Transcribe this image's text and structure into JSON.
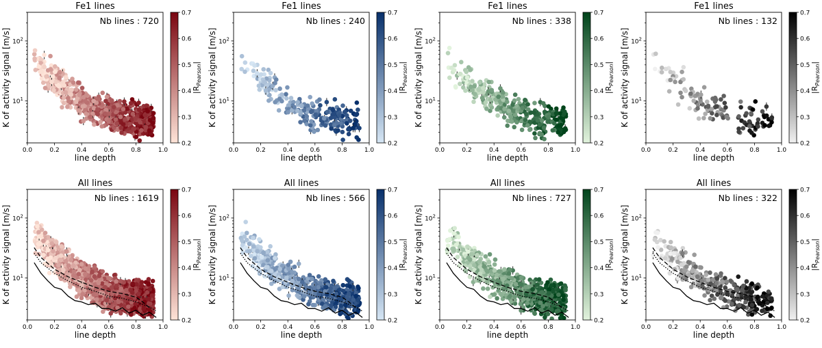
{
  "chart_data": [
    {
      "type": "scatter",
      "row": "top",
      "title": "Fe1 lines",
      "annotation": "Nb lines : 720",
      "xlabel": "line depth",
      "ylabel": "K of activity signal [m/s]",
      "xlim": [
        0,
        1
      ],
      "ylim": [
        2,
        300
      ],
      "yscale": "log",
      "xticks": [
        "0.0",
        "0.2",
        "0.4",
        "0.6",
        "0.8",
        "1.0"
      ],
      "yticks": [
        "10^1",
        "10^2"
      ],
      "colormap": "Reds",
      "colorbar": {
        "label": "|R_Pearson|",
        "range": [
          0.2,
          0.7
        ],
        "ticks": [
          "0.2",
          "0.3",
          "0.4",
          "0.5",
          "0.6",
          "0.7"
        ]
      },
      "point_count": 720,
      "seed": 11,
      "color_low": "#fee4d8",
      "color_high": "#7a0510",
      "reference_lines": false
    },
    {
      "type": "scatter",
      "row": "top",
      "title": "Fe1 lines",
      "annotation": "Nb lines : 240",
      "xlabel": "line depth",
      "ylabel": "K of activity signal [m/s]",
      "xlim": [
        0,
        1
      ],
      "ylim": [
        2,
        300
      ],
      "yscale": "log",
      "xticks": [
        "0.0",
        "0.2",
        "0.4",
        "0.6",
        "0.8",
        "1.0"
      ],
      "yticks": [
        "10^1",
        "10^2"
      ],
      "colormap": "Blues",
      "colorbar": {
        "label": "|R_Pearson|",
        "range": [
          0.2,
          0.7
        ],
        "ticks": [
          "0.2",
          "0.3",
          "0.4",
          "0.5",
          "0.6",
          "0.7"
        ]
      },
      "point_count": 240,
      "seed": 23,
      "color_low": "#d6e6f4",
      "color_high": "#08306b",
      "reference_lines": false
    },
    {
      "type": "scatter",
      "row": "top",
      "title": "Fe1 lines",
      "annotation": "Nb lines : 338",
      "xlabel": "line depth",
      "ylabel": "K of activity signal [m/s]",
      "xlim": [
        0,
        1
      ],
      "ylim": [
        2,
        300
      ],
      "yscale": "log",
      "xticks": [
        "0.0",
        "0.2",
        "0.4",
        "0.6",
        "0.8",
        "1.0"
      ],
      "yticks": [
        "10^1",
        "10^2"
      ],
      "colormap": "Greens",
      "colorbar": {
        "label": "|R_Pearson|",
        "range": [
          0.2,
          0.7
        ],
        "ticks": [
          "0.2",
          "0.3",
          "0.4",
          "0.5",
          "0.6",
          "0.7"
        ]
      },
      "point_count": 338,
      "seed": 37,
      "color_low": "#e2f3dd",
      "color_high": "#00441b",
      "reference_lines": false
    },
    {
      "type": "scatter",
      "row": "top",
      "title": "Fe1 lines",
      "annotation": "Nb lines : 132",
      "xlabel": "line depth",
      "ylabel": "K of activity signal [m/s]",
      "xlim": [
        0,
        1
      ],
      "ylim": [
        2,
        300
      ],
      "yscale": "log",
      "xticks": [
        "0.0",
        "0.2",
        "0.4",
        "0.6",
        "0.8",
        "1.0"
      ],
      "yticks": [
        "10^1",
        "10^2"
      ],
      "colormap": "Greys",
      "colorbar": {
        "label": "|R_Pearson|",
        "range": [
          0.2,
          0.7
        ],
        "ticks": [
          "0.2",
          "0.3",
          "0.4",
          "0.5",
          "0.6",
          "0.7"
        ]
      },
      "point_count": 132,
      "seed": 41,
      "color_low": "#f0f0f0",
      "color_high": "#000000",
      "reference_lines": false
    },
    {
      "type": "scatter",
      "row": "bottom",
      "title": "All lines",
      "annotation": "Nb lines : 1619",
      "xlabel": "line depth",
      "ylabel": "K of activity signal [m/s]",
      "xlim": [
        0,
        1
      ],
      "ylim": [
        2,
        300
      ],
      "yscale": "log",
      "xticks": [
        "0.0",
        "0.2",
        "0.4",
        "0.6",
        "0.8",
        "1.0"
      ],
      "yticks": [
        "10^1",
        "10^2"
      ],
      "colormap": "Reds",
      "colorbar": {
        "label": "|R_Pearson|",
        "range": [
          0.2,
          0.7
        ],
        "ticks": [
          "0.2",
          "0.3",
          "0.4",
          "0.5",
          "0.6",
          "0.7"
        ]
      },
      "point_count": 1619,
      "seed": 53,
      "color_low": "#fee4d8",
      "color_high": "#7a0510",
      "reference_lines": true
    },
    {
      "type": "scatter",
      "row": "bottom",
      "title": "All lines",
      "annotation": "Nb lines : 566",
      "xlabel": "line depth",
      "ylabel": "K of activity signal [m/s]",
      "xlim": [
        0,
        1
      ],
      "ylim": [
        2,
        300
      ],
      "yscale": "log",
      "xticks": [
        "0.0",
        "0.2",
        "0.4",
        "0.6",
        "0.8",
        "1.0"
      ],
      "yticks": [
        "10^1",
        "10^2"
      ],
      "colormap": "Blues",
      "colorbar": {
        "label": "|R_Pearson|",
        "range": [
          0.2,
          0.7
        ],
        "ticks": [
          "0.2",
          "0.3",
          "0.4",
          "0.5",
          "0.6",
          "0.7"
        ]
      },
      "point_count": 566,
      "seed": 67,
      "color_low": "#d6e6f4",
      "color_high": "#08306b",
      "reference_lines": true
    },
    {
      "type": "scatter",
      "row": "bottom",
      "title": "All lines",
      "annotation": "Nb lines : 727",
      "xlabel": "line depth",
      "ylabel": "K of activity signal [m/s]",
      "xlim": [
        0,
        1
      ],
      "ylim": [
        2,
        300
      ],
      "yscale": "log",
      "xticks": [
        "0.0",
        "0.2",
        "0.4",
        "0.6",
        "0.8",
        "1.0"
      ],
      "yticks": [
        "10^1",
        "10^2"
      ],
      "colormap": "Greens",
      "colorbar": {
        "label": "|R_Pearson|",
        "range": [
          0.2,
          0.7
        ],
        "ticks": [
          "0.2",
          "0.3",
          "0.4",
          "0.5",
          "0.6",
          "0.7"
        ]
      },
      "point_count": 727,
      "seed": 71,
      "color_low": "#e2f3dd",
      "color_high": "#00441b",
      "reference_lines": true
    },
    {
      "type": "scatter",
      "row": "bottom",
      "title": "All lines",
      "annotation": "Nb lines : 322",
      "xlabel": "line depth",
      "ylabel": "K of activity signal [m/s]",
      "xlim": [
        0,
        1
      ],
      "ylim": [
        2,
        300
      ],
      "yscale": "log",
      "xticks": [
        "0.0",
        "0.2",
        "0.4",
        "0.6",
        "0.8",
        "1.0"
      ],
      "yticks": [
        "10^1",
        "10^2"
      ],
      "colormap": "Greys",
      "colorbar": {
        "label": "|R_Pearson|",
        "range": [
          0.2,
          0.7
        ],
        "ticks": [
          "0.2",
          "0.3",
          "0.4",
          "0.5",
          "0.6",
          "0.7"
        ]
      },
      "point_count": 322,
      "seed": 83,
      "color_low": "#f0f0f0",
      "color_high": "#000000",
      "reference_lines": true
    }
  ],
  "reference_curves": {
    "solid": {
      "x": [
        0.05,
        0.1,
        0.15,
        0.2,
        0.25,
        0.3,
        0.35,
        0.4,
        0.45,
        0.5,
        0.55,
        0.6,
        0.65,
        0.7,
        0.75,
        0.8,
        0.85,
        0.9,
        0.95
      ],
      "y": [
        18,
        12,
        9,
        7,
        6.5,
        5,
        4.2,
        4,
        3.6,
        3.8,
        3.1,
        3.1,
        2.8,
        3.2,
        2.6,
        2.9,
        2.4,
        2.7,
        2.2
      ]
    },
    "dotted": {
      "x": [
        0.05,
        0.1,
        0.2,
        0.3,
        0.4,
        0.5,
        0.6,
        0.7,
        0.8,
        0.9,
        0.95
      ],
      "y": [
        26,
        18,
        12,
        9,
        7,
        6,
        5,
        4.6,
        4,
        3.3,
        2.8
      ]
    },
    "dashed": {
      "x": [
        0.05,
        0.1,
        0.2,
        0.3,
        0.4,
        0.5,
        0.6,
        0.7,
        0.8,
        0.85,
        0.9
      ],
      "y": [
        32,
        22,
        14,
        10.5,
        8.5,
        7,
        6,
        5.5,
        4.8,
        4,
        3.2
      ]
    }
  }
}
